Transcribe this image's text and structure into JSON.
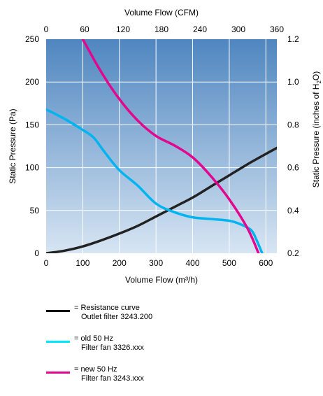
{
  "chart_data": {
    "type": "line",
    "title": "",
    "top_axis": {
      "label": "Volume Flow (CFM)",
      "ticks": [
        0,
        60,
        120,
        180,
        240,
        300,
        360
      ]
    },
    "bottom_axis": {
      "label": "Volume Flow (m³/h)",
      "ticks": [
        0,
        100,
        200,
        300,
        400,
        500,
        600
      ],
      "xlim": [
        0,
        630
      ]
    },
    "left_axis": {
      "label": "Static Pressure (Pa)",
      "ticks": [
        0,
        50,
        100,
        150,
        200,
        250
      ],
      "ylim": [
        0,
        250
      ]
    },
    "right_axis": {
      "label_parts": [
        "Static Pressure (inches of H",
        "2",
        "O)"
      ],
      "ticks": [
        "0.2",
        "0.4",
        "0.6",
        "0.8",
        "1.0",
        "1.2"
      ]
    },
    "grid": true,
    "background": {
      "top": "#4f86c0",
      "bottom": "#d7e5f3"
    },
    "series": [
      {
        "name": "Resistance curve",
        "color": "#222222",
        "points": [
          [
            0,
            0
          ],
          [
            50,
            3
          ],
          [
            100,
            8
          ],
          [
            150,
            15
          ],
          [
            200,
            23
          ],
          [
            250,
            32
          ],
          [
            300,
            43
          ],
          [
            350,
            54
          ],
          [
            400,
            65
          ],
          [
            450,
            78
          ],
          [
            500,
            91
          ],
          [
            550,
            104
          ],
          [
            600,
            116
          ],
          [
            630,
            123
          ]
        ]
      },
      {
        "name": "old 50 Hz",
        "color": "#00b4f0",
        "points": [
          [
            0,
            168
          ],
          [
            50,
            157
          ],
          [
            100,
            144
          ],
          [
            130,
            135
          ],
          [
            160,
            118
          ],
          [
            200,
            97
          ],
          [
            250,
            79
          ],
          [
            300,
            58
          ],
          [
            350,
            48
          ],
          [
            400,
            42
          ],
          [
            450,
            40
          ],
          [
            500,
            38
          ],
          [
            530,
            34
          ],
          [
            560,
            27
          ],
          [
            575,
            15
          ],
          [
            590,
            0
          ]
        ]
      },
      {
        "name": "new 50 Hz",
        "color": "#e2078e",
        "points": [
          [
            100,
            250
          ],
          [
            150,
            212
          ],
          [
            200,
            180
          ],
          [
            250,
            155
          ],
          [
            300,
            137
          ],
          [
            350,
            126
          ],
          [
            400,
            112
          ],
          [
            450,
            90
          ],
          [
            500,
            63
          ],
          [
            550,
            29
          ],
          [
            580,
            0
          ]
        ]
      }
    ]
  },
  "legend": [
    {
      "color": "#000000",
      "line1": "= Resistance curve",
      "line2": "Outlet filter 3243.200"
    },
    {
      "color": "#00e6ff",
      "line1": "= old 50 Hz",
      "line2": "Filter fan 3326.xxx"
    },
    {
      "color": "#e2078e",
      "line1": "= new 50 Hz",
      "line2": "Filter fan 3243.xxx"
    }
  ]
}
